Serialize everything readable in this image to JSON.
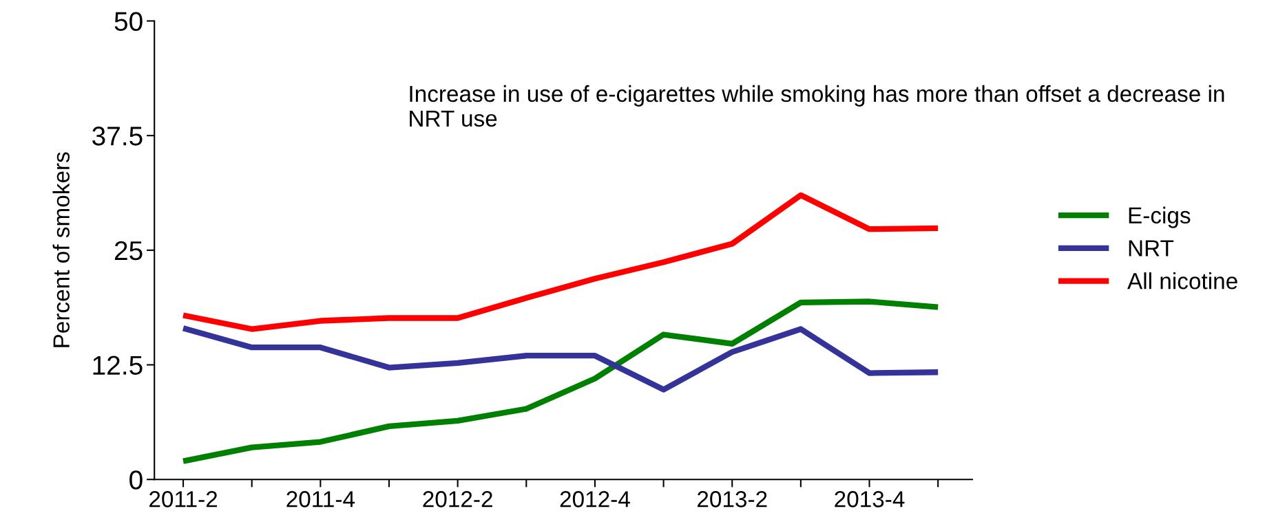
{
  "chart_data": {
    "type": "line",
    "ylabel": "Percent of smokers",
    "categories": [
      "2011-2",
      null,
      "2011-4",
      null,
      "2012-2",
      null,
      "2012-4",
      null,
      "2013-2",
      null,
      "2013-4",
      null
    ],
    "series": [
      {
        "name": "E-cigs",
        "color": "#008000",
        "values": [
          2.0,
          3.5,
          4.1,
          5.8,
          6.4,
          7.7,
          11.0,
          15.8,
          14.8,
          19.3,
          19.4,
          18.8
        ]
      },
      {
        "name": "NRT",
        "color": "#333399",
        "values": [
          16.5,
          14.4,
          14.4,
          12.2,
          12.7,
          13.5,
          13.5,
          9.8,
          13.9,
          16.4,
          11.6,
          11.7
        ]
      },
      {
        "name": "All nicotine",
        "color": "#ff0000",
        "values": [
          17.9,
          16.4,
          17.3,
          17.6,
          17.6,
          19.8,
          21.9,
          23.7,
          25.7,
          31.0,
          27.3,
          27.4
        ]
      }
    ],
    "ylim": [
      0,
      50
    ],
    "yticks": [
      0,
      12.5,
      25,
      37.5,
      50
    ],
    "grid": false,
    "legend": "right",
    "marker": "none",
    "line_style": "solid",
    "annotations": [
      "Increase in use of e-cigarettes while smoking has more than offset a decrease in NRT use"
    ]
  }
}
